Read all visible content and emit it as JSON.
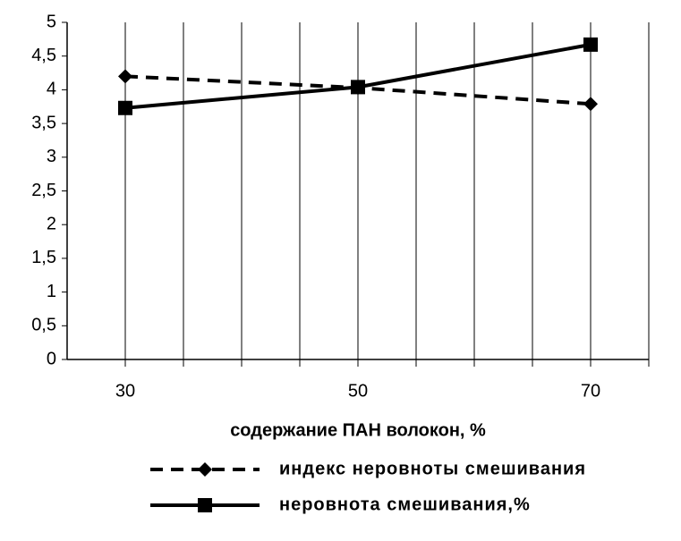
{
  "chart_data": {
    "type": "line",
    "x_label": "содержание ПАН волокон, %",
    "x": [
      30,
      50,
      70
    ],
    "xlim": [
      25,
      75
    ],
    "xticks": [
      30,
      50,
      70
    ],
    "ylim": [
      0,
      5
    ],
    "yticks": [
      0,
      {
        "value": 0.5,
        "label": "0,5"
      },
      1,
      {
        "value": 1.5,
        "label": "1,5"
      },
      2,
      {
        "value": 2.5,
        "label": "2,5"
      },
      3,
      {
        "value": 3.5,
        "label": "3,5"
      },
      4,
      {
        "value": 4.5,
        "label": "4,5"
      },
      5
    ],
    "series": [
      {
        "name": "индекс неровноты смешивания",
        "color": "#000000",
        "dash": true,
        "marker": "diamond",
        "values": [
          4.2,
          4.03,
          3.79
        ]
      },
      {
        "name": "неровнота смешивания,%",
        "color": "#000000",
        "dash": false,
        "marker": "square",
        "values": [
          3.73,
          4.04,
          4.67
        ]
      }
    ]
  }
}
